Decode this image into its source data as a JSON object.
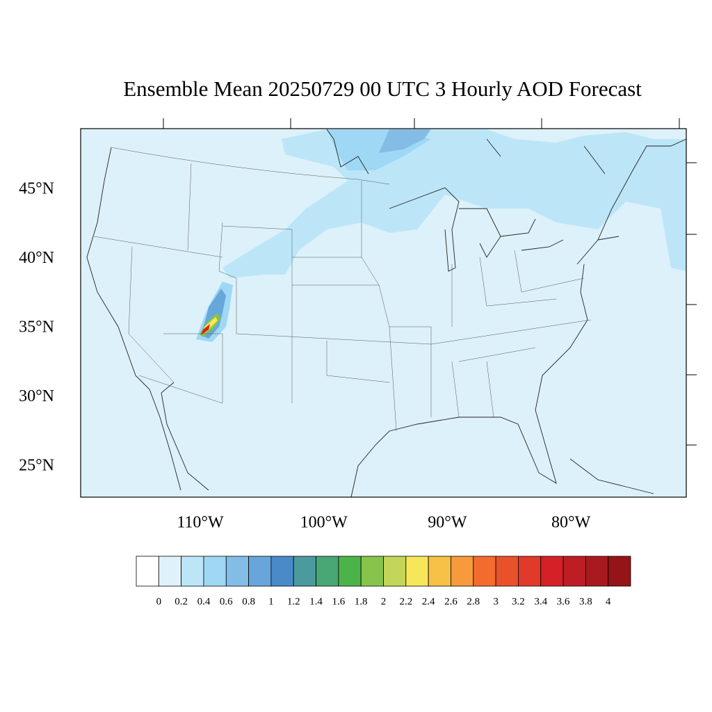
{
  "map": {
    "title": "Ensemble Mean 20250729 00 UTC 3 Hourly AOD Forecast",
    "lat_labels": [
      {
        "value": 45,
        "label": "45°N"
      },
      {
        "value": 40,
        "label": "40°N"
      },
      {
        "value": 35,
        "label": "35°N"
      },
      {
        "value": 30,
        "label": "30°N"
      },
      {
        "value": 25,
        "label": "25°N"
      }
    ],
    "lon_labels": [
      {
        "value": -110,
        "label": "110°W"
      },
      {
        "value": -100,
        "label": "100°W"
      },
      {
        "value": -90,
        "label": "90°W"
      },
      {
        "value": -80,
        "label": "80°W"
      }
    ],
    "colorbar": {
      "levels": [
        0,
        0.2,
        0.4,
        0.6,
        0.8,
        1,
        1.2,
        1.4,
        1.6,
        1.8,
        2,
        2.2,
        2.4,
        2.6,
        2.8,
        3,
        3.2,
        3.4,
        3.6,
        3.8,
        4
      ],
      "colors": [
        "#ffffff",
        "#dff2fb",
        "#bce6f8",
        "#9fd8f4",
        "#83bde6",
        "#66a6da",
        "#4a8ac9",
        "#4b9a9e",
        "#49a775",
        "#4bb34a",
        "#86c44c",
        "#c3d659",
        "#f6e65a",
        "#f7c047",
        "#f79a3c",
        "#f36c2d",
        "#e9512b",
        "#df3a2a",
        "#d52028",
        "#bd1d24",
        "#a81a1f",
        "#941418"
      ]
    }
  }
}
